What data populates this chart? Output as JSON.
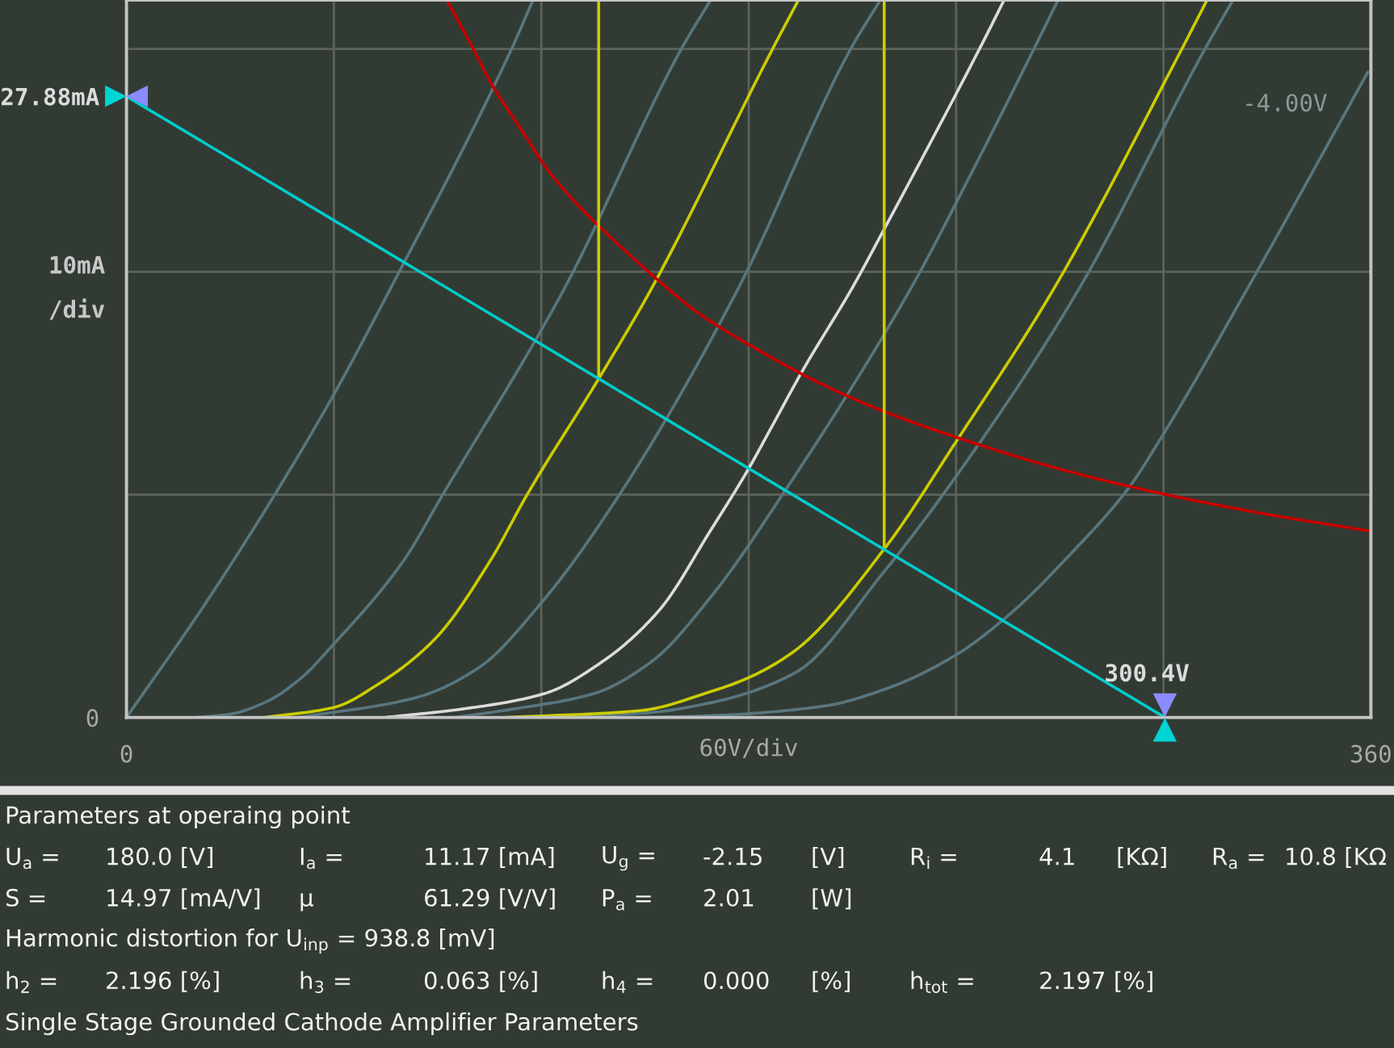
{
  "chart_data": {
    "type": "line",
    "xlabel": "60V/div",
    "ylabel": "10mA\n/div",
    "xlim": [
      0,
      360
    ],
    "xticks": [
      0,
      {
        "value": 60,
        "label": null
      },
      {
        "value": 120,
        "label": null
      },
      {
        "value": 180,
        "label": null
      },
      {
        "value": 240,
        "label": null
      },
      {
        "value": 300,
        "label": null
      },
      360
    ],
    "ylim": [
      0,
      32.2
    ],
    "yticks": [
      0,
      {
        "value": 10,
        "label": null
      },
      {
        "value": 20,
        "label": null
      },
      {
        "value": 27.88,
        "label": "27.88mA"
      },
      {
        "value": 30,
        "label": null
      }
    ],
    "grid": true,
    "series": [
      {
        "color": "#58767f",
        "x": [
          0,
          21.9,
          42.9,
          60,
          76.1,
          111.4,
          117.6
        ],
        "values": [
          0,
          4.9,
          10,
          14.5,
          19.17,
          30,
          32.2
        ]
      },
      {
        "color": "#58767f",
        "x": [
          20,
          30,
          40.4,
          50,
          60,
          80,
          91.5,
          126.4,
          160.5,
          169
        ],
        "values": [
          0,
          0.15,
          0.7,
          1.7,
          3.3,
          7.0,
          10,
          19.17,
          30,
          32.2
        ]
      },
      {
        "color": "#58767f",
        "x": [
          50,
          84,
          101.6,
          120.1,
          142.6,
          176.7,
          209.5,
          218.1
        ],
        "values": [
          0,
          0.9,
          2.2,
          5.16,
          10,
          19.17,
          30,
          32.2
        ]
      },
      {
        "color": "#58767f",
        "x": [
          95,
          112,
          135,
          152,
          169,
          190.1,
          226.6,
          243.8,
          262.5,
          269.5
        ],
        "values": [
          0,
          0.38,
          1.06,
          2.52,
          5.4,
          10.08,
          19.17,
          24.24,
          30,
          32.2
        ]
      },
      {
        "color": "#58767f",
        "x": [
          115,
          150,
          169,
          193.4,
          219.2,
          239.9,
          275.3,
          312,
          320.1
        ],
        "values": [
          0,
          0.2,
          0.66,
          2.0,
          6.55,
          10.8,
          19.17,
          30,
          32.2
        ]
      },
      {
        "color": "#58767f",
        "name": "-4.00V",
        "x": [
          150,
          169,
          201.4,
          220,
          239.9,
          256,
          272.9,
          289.9,
          300.1,
          324,
          359.1
        ],
        "values": [
          0,
          0.08,
          0.5,
          1.3,
          2.8,
          4.7,
          7.3,
          10.3,
          12.75,
          19.17,
          28.96
        ]
      },
      {
        "color": "#cccc00",
        "x": [
          40,
          60,
          72.9,
          89.1,
          105.3,
          115.9,
          136.6,
          151.6,
          186.9,
          194.4
        ],
        "values": [
          0,
          0.45,
          1.5,
          3.5,
          7.05,
          10,
          15.2,
          19.17,
          30,
          32.2
        ]
      },
      {
        "color": "#cccc00",
        "x": [
          110,
          148.8,
          169,
          179.6,
          193.4,
          219.2,
          240.4,
          268,
          305.3,
          312.6
        ],
        "values": [
          0,
          0.31,
          1.16,
          1.76,
          3.0,
          7.56,
          12.47,
          19.17,
          30,
          32.2
        ]
      },
      {
        "color": "#dcdcdc",
        "x": [
          75,
          97.2,
          120.7,
          137.8,
          154,
          169,
          180,
          186.4,
          195.5,
          210.4,
          218.9,
          248.5,
          253.9
        ],
        "values": [
          0,
          0.38,
          1.06,
          2.52,
          4.79,
          8.4,
          11.17,
          12.97,
          15.54,
          19.4,
          21.83,
          30.53,
          32.2
        ]
      },
      {
        "color": "#c80000",
        "x": [
          92.7,
          100,
          105.9,
          115,
          122.2,
          130,
          136.6,
          152.7,
          165,
          179.9,
          200,
          219.2,
          248.5,
          270,
          300,
          330,
          360
        ],
        "values": [
          32.2,
          30.1,
          28.35,
          26.2,
          24.5,
          23.1,
          22.07,
          19.77,
          18.2,
          16.75,
          15.05,
          13.73,
          12.15,
          11.15,
          10.03,
          9.12,
          8.36
        ]
      },
      {
        "color": "#cccc00",
        "x": [
          136.6,
          136.6
        ],
        "values": [
          15.2,
          32.2
        ]
      },
      {
        "color": "#cccc00",
        "x": [
          219.2,
          219.2
        ],
        "values": [
          7.54,
          32.2
        ]
      },
      {
        "color": "#00cccc",
        "x": [
          0,
          300.4
        ],
        "values": [
          27.88,
          0
        ]
      }
    ],
    "annotations": [
      {
        "text": "300.4V",
        "x": 300.4,
        "y": 0
      },
      "Parameters at operaing point",
      "U$_{a}$ =\t180.0 [V]\tI$_{a}$ =\t11.17 [mA]\tU$_{g}$ =\t-2.15\t[V]\tR$_{i}$ =\t4.1\t[KΩ]\tR$_{a}$ =\t10.8 [KΩ",
      "S =\t14.97 [mA/V]\tμ\t61.29 [V/V]\tP$_{a}$ =\t2.01\t[W]",
      "Harmonic distortion for U$_{inp}$ = 938.8 [mV]",
      "h$_{2}$ =\t2.196 [%]\th$_{3}$ =\t0.063 [%]\th$_{4}$ =\t0.000\t[%]\th$_{tot}$ =\t2.197 [%]",
      "Single Stage Grounded Cathode Amplifier Parameters"
    ]
  }
}
